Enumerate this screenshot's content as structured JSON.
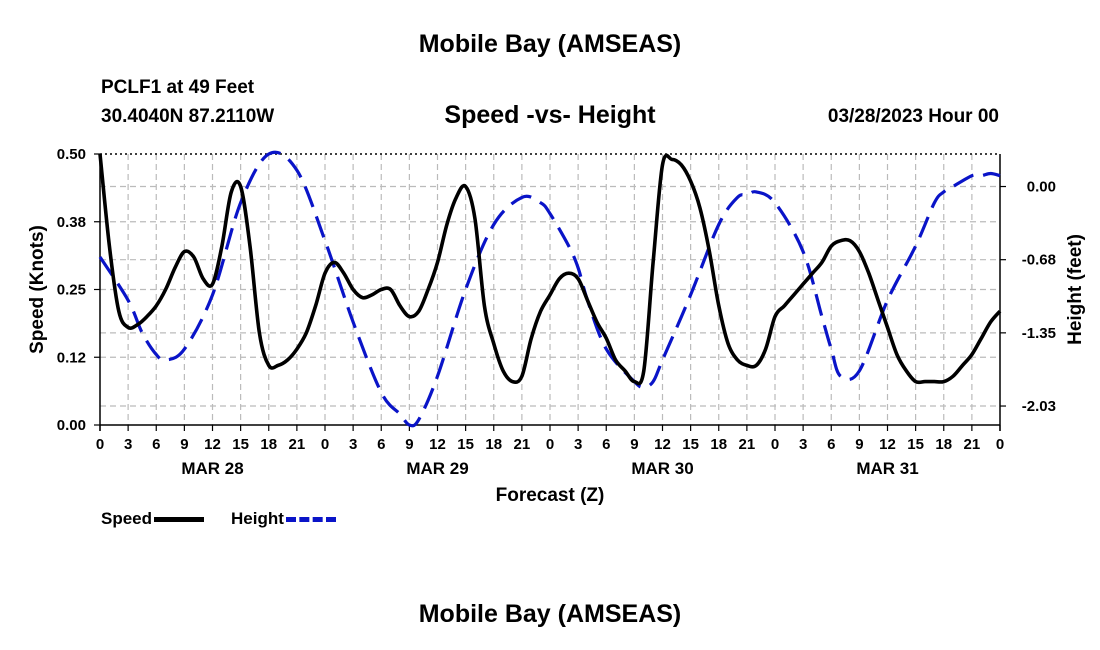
{
  "header": {
    "title": "Mobile Bay (AMSEAS)",
    "station": "PCLF1 at 49 Feet",
    "coords": "30.4040N  87.2110W",
    "chart_title": "Speed -vs- Height",
    "date": "03/28/2023 Hour 00"
  },
  "footer": {
    "title": "Mobile Bay (AMSEAS)"
  },
  "legend": {
    "speed": "Speed",
    "height": "Height"
  },
  "colors": {
    "speed": "#000000",
    "height": "#0a14c8",
    "grid": "#bbbbbb"
  },
  "chart_data": {
    "type": "line",
    "title": "Speed -vs- Height",
    "xlabel": "Forecast (Z)",
    "ylabel": "Speed (Knots)",
    "y2label": "Height (feet)",
    "xlim": [
      0,
      96
    ],
    "ylim": [
      0,
      0.5
    ],
    "y2lim": [
      -2.2,
      0.3
    ],
    "x_tick_labels": [
      "0",
      "3",
      "6",
      "9",
      "12",
      "15",
      "18",
      "21",
      "0",
      "3",
      "6",
      "9",
      "12",
      "15",
      "18",
      "21",
      "0",
      "3",
      "6",
      "9",
      "12",
      "15",
      "18",
      "21",
      "0",
      "3",
      "6",
      "9",
      "12",
      "15",
      "18",
      "21",
      "0"
    ],
    "day_labels": [
      {
        "label": "MAR 28",
        "x": 12
      },
      {
        "label": "MAR 29",
        "x": 36
      },
      {
        "label": "MAR 30",
        "x": 60
      },
      {
        "label": "MAR 31",
        "x": 84
      }
    ],
    "y_ticks": [
      "0.00",
      "0.12",
      "0.25",
      "0.38",
      "0.50"
    ],
    "y_tick_values": [
      0,
      0.125,
      0.25,
      0.375,
      0.5
    ],
    "y2_ticks": [
      "0.00",
      "-0.68",
      "-1.35",
      "-2.03"
    ],
    "y2_tick_values": [
      0,
      -0.675,
      -1.35,
      -2.025
    ],
    "series": [
      {
        "name": "Speed",
        "axis": "left",
        "x": [
          0,
          1,
          2,
          3,
          4,
          5,
          6,
          7,
          8,
          9,
          10,
          11,
          12,
          13,
          14,
          15,
          16,
          17,
          18,
          19,
          20,
          21,
          22,
          23,
          24,
          25,
          26,
          27,
          28,
          29,
          30,
          31,
          32,
          33,
          34,
          35,
          36,
          37,
          38,
          39,
          40,
          41,
          42,
          43,
          44,
          45,
          46,
          47,
          48,
          49,
          50,
          51,
          52,
          53,
          54,
          55,
          56,
          57,
          58,
          59,
          60,
          61,
          62,
          63,
          64,
          65,
          66,
          67,
          68,
          69,
          70,
          71,
          72,
          73,
          74,
          75,
          76,
          77,
          78,
          79,
          80,
          81,
          82,
          83,
          84,
          85,
          86,
          87,
          88,
          89,
          90,
          91,
          92,
          93,
          94,
          95,
          96
        ],
        "values": [
          0.5,
          0.33,
          0.21,
          0.18,
          0.185,
          0.2,
          0.22,
          0.25,
          0.29,
          0.32,
          0.31,
          0.27,
          0.26,
          0.33,
          0.43,
          0.44,
          0.33,
          0.17,
          0.11,
          0.11,
          0.12,
          0.14,
          0.17,
          0.22,
          0.28,
          0.3,
          0.28,
          0.25,
          0.235,
          0.24,
          0.25,
          0.25,
          0.22,
          0.2,
          0.21,
          0.25,
          0.3,
          0.37,
          0.42,
          0.44,
          0.38,
          0.22,
          0.15,
          0.1,
          0.08,
          0.09,
          0.16,
          0.21,
          0.24,
          0.27,
          0.28,
          0.27,
          0.23,
          0.19,
          0.16,
          0.12,
          0.1,
          0.08,
          0.1,
          0.3,
          0.48,
          0.49,
          0.48,
          0.45,
          0.4,
          0.32,
          0.22,
          0.15,
          0.12,
          0.11,
          0.11,
          0.14,
          0.2,
          0.22,
          0.24,
          0.26,
          0.28,
          0.3,
          0.33,
          0.34,
          0.34,
          0.32,
          0.28,
          0.23,
          0.18,
          0.13,
          0.1,
          0.08,
          0.08,
          0.08,
          0.08,
          0.09,
          0.11,
          0.13,
          0.16,
          0.19,
          0.21
        ]
      },
      {
        "name": "Height",
        "axis": "right",
        "x": [
          0,
          3,
          4.5,
          6,
          7,
          9,
          12,
          15,
          18,
          21,
          24,
          27,
          30,
          32,
          33,
          34,
          36,
          39,
          42,
          45,
          47,
          48,
          50,
          51,
          52,
          54,
          57,
          58,
          59,
          60,
          63,
          66,
          68,
          69,
          70,
          72,
          75,
          77,
          78,
          79,
          81,
          84,
          87,
          89,
          90,
          91,
          93,
          94,
          95,
          96
        ],
        "values": [
          -0.65,
          -1.05,
          -1.35,
          -1.55,
          -1.6,
          -1.5,
          -1.0,
          -0.15,
          0.3,
          0.15,
          -0.5,
          -1.25,
          -1.9,
          -2.1,
          -2.2,
          -2.15,
          -1.75,
          -0.95,
          -0.35,
          -0.1,
          -0.15,
          -0.25,
          -0.55,
          -0.75,
          -1.05,
          -1.5,
          -1.8,
          -1.85,
          -1.8,
          -1.6,
          -1.0,
          -0.35,
          -0.1,
          -0.08,
          -0.05,
          -0.15,
          -0.6,
          -1.2,
          -1.5,
          -1.75,
          -1.7,
          -1.05,
          -0.55,
          -0.15,
          -0.05,
          0.0,
          0.1,
          0.1,
          0.12,
          0.1
        ]
      }
    ]
  }
}
